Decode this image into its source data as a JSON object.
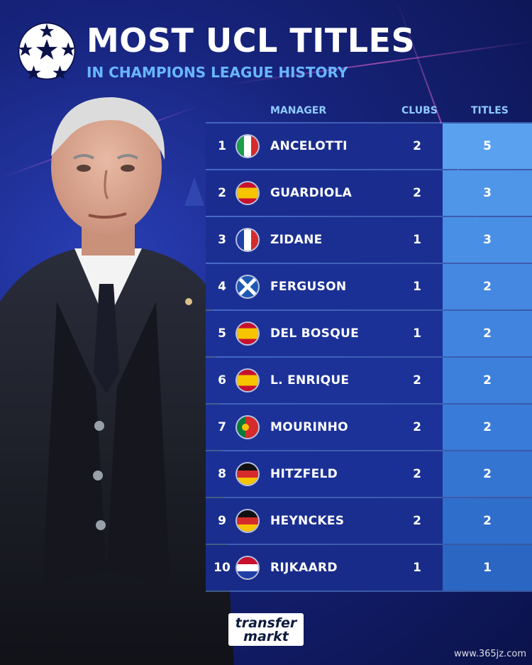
{
  "header": {
    "title": "MOST UCL TITLES",
    "subtitle": "IN CHAMPIONS LEAGUE HISTORY"
  },
  "table": {
    "columns": {
      "manager": "MANAGER",
      "clubs": "CLUBS",
      "titles": "TITLES"
    },
    "rows": [
      {
        "rank": "1",
        "flag": "italy-flag-icon",
        "name": "ANCELOTTI",
        "clubs": "2",
        "titles": "5"
      },
      {
        "rank": "2",
        "flag": "spain-flag-icon",
        "name": "GUARDIOLA",
        "clubs": "2",
        "titles": "3"
      },
      {
        "rank": "3",
        "flag": "france-flag-icon",
        "name": "ZIDANE",
        "clubs": "1",
        "titles": "3"
      },
      {
        "rank": "4",
        "flag": "scotland-flag-icon",
        "name": "FERGUSON",
        "clubs": "1",
        "titles": "2"
      },
      {
        "rank": "5",
        "flag": "spain-flag-icon",
        "name": "DEL BOSQUE",
        "clubs": "1",
        "titles": "2"
      },
      {
        "rank": "6",
        "flag": "spain-flag-icon",
        "name": "L. ENRIQUE",
        "clubs": "2",
        "titles": "2"
      },
      {
        "rank": "7",
        "flag": "portugal-flag-icon",
        "name": "MOURINHO",
        "clubs": "2",
        "titles": "2"
      },
      {
        "rank": "8",
        "flag": "germany-flag-icon",
        "name": "HITZFELD",
        "clubs": "2",
        "titles": "2"
      },
      {
        "rank": "9",
        "flag": "germany-flag-icon",
        "name": "HEYNCKES",
        "clubs": "2",
        "titles": "2"
      },
      {
        "rank": "10",
        "flag": "netherlands-flag-icon",
        "name": "RIJKAARD",
        "clubs": "1",
        "titles": "1"
      }
    ]
  },
  "brand": {
    "line1": "transfer",
    "line2": "markt"
  },
  "watermark": "www.365jz.com",
  "colors": {
    "background": "#16237a",
    "accent": "#69b6ff",
    "row_main": "#1a2d8f",
    "titles_cell": "#4a8fe6"
  }
}
